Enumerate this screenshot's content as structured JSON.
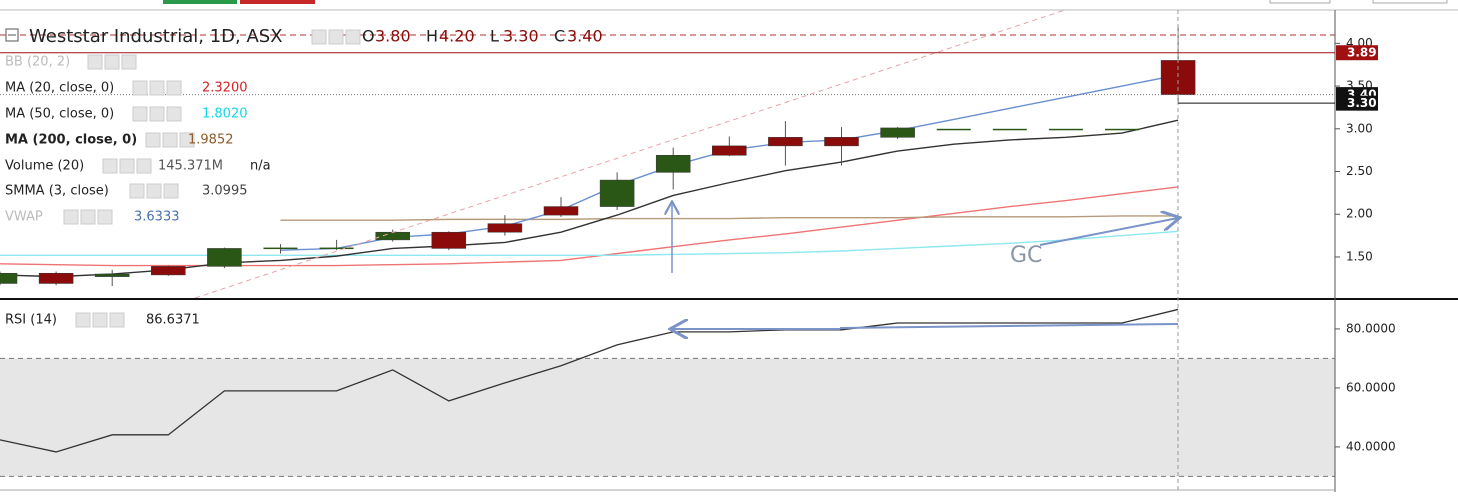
{
  "chart_data": [
    {
      "type": "candlestick",
      "title": "Weststar Industrial, 1D, ASX",
      "header": [
        {
          "key": "O",
          "value": "3.80"
        },
        {
          "key": "H",
          "value": "4.20"
        },
        {
          "key": "L",
          "value": "3.30"
        },
        {
          "key": "C",
          "value": "3.40"
        }
      ],
      "categories": [
        null,
        null,
        null,
        null,
        null,
        null,
        null,
        null,
        null,
        null,
        null,
        null,
        null,
        null,
        null,
        null,
        null,
        null,
        null,
        null,
        null,
        null
      ],
      "open": [
        1.19,
        1.31,
        1.27,
        1.39,
        1.39,
        1.6,
        1.6,
        1.7,
        1.79,
        1.89,
        2.09,
        2.09,
        2.49,
        2.8,
        2.9,
        2.9,
        2.9,
        3.0,
        3.0,
        3.0,
        3.0,
        3.8
      ],
      "high": [
        1.33,
        1.33,
        1.35,
        1.4,
        1.61,
        1.65,
        1.7,
        1.82,
        1.8,
        1.99,
        2.2,
        2.49,
        2.78,
        2.91,
        3.09,
        3.02,
        3.02,
        3.0,
        3.0,
        3.0,
        3.0,
        4.2
      ],
      "low": [
        1.17,
        1.17,
        1.16,
        1.28,
        1.37,
        1.54,
        1.58,
        1.68,
        1.58,
        1.75,
        1.97,
        2.05,
        2.29,
        2.68,
        2.57,
        2.57,
        2.88,
        3.0,
        3.0,
        3.0,
        3.0,
        3.3
      ],
      "close": [
        1.31,
        1.19,
        1.3,
        1.29,
        1.6,
        1.61,
        1.61,
        1.79,
        1.6,
        1.79,
        1.99,
        2.4,
        2.69,
        2.69,
        2.8,
        2.8,
        3.01,
        3.0,
        3.0,
        3.0,
        3.0,
        3.4
      ],
      "up_color": "#2b5716",
      "down_color": "#8b0a0a",
      "indicators": [
        {
          "name": "BB (20, 2)"
        },
        {
          "name": "Volume (20)",
          "value_label": "145.371M",
          "extra": "n/a",
          "color": "#555555"
        }
      ],
      "series": [
        {
          "name": "MA (20, close, 0)",
          "value_label": "2.3200",
          "color": "#f07373",
          "label_color": "#d42020",
          "values": [
            1.42,
            1.41,
            1.4,
            1.4,
            1.4,
            1.4,
            1.4,
            1.41,
            1.42,
            1.44,
            1.46,
            1.54,
            1.62,
            1.7,
            1.77,
            1.85,
            1.93,
            2.01,
            2.09,
            2.16,
            2.24,
            2.32
          ]
        },
        {
          "name": "MA (50, close, 0)",
          "value_label": "1.8020",
          "color": "#8ee8ee",
          "label_color": "#10d8e8",
          "values": [
            1.52,
            1.52,
            1.52,
            1.52,
            1.52,
            1.52,
            1.52,
            1.52,
            1.52,
            1.52,
            1.52,
            1.52,
            1.53,
            1.54,
            1.55,
            1.57,
            1.6,
            1.63,
            1.66,
            1.7,
            1.75,
            1.8
          ]
        },
        {
          "name": "MA (200, close, 0)",
          "value_label": "1.9852",
          "color": "#b49a78",
          "label_color": "#8b5a2b",
          "bold": true,
          "values": [
            null,
            null,
            null,
            null,
            null,
            1.93,
            1.93,
            1.93,
            1.94,
            1.94,
            1.94,
            1.95,
            1.95,
            1.95,
            1.96,
            1.96,
            1.96,
            1.97,
            1.97,
            1.97,
            1.98,
            1.98
          ]
        },
        {
          "name": "SMMA (3, close)",
          "value_label": "3.0995",
          "color": "#333333",
          "label_color": "#444444",
          "values": [
            1.29,
            1.27,
            1.3,
            1.35,
            1.43,
            1.46,
            1.51,
            1.6,
            1.63,
            1.67,
            1.79,
            1.99,
            2.22,
            2.37,
            2.51,
            2.61,
            2.74,
            2.82,
            2.87,
            2.9,
            2.95,
            3.1
          ]
        },
        {
          "name": "VWAP",
          "value_label": "3.6333",
          "color": "#6a8fd0",
          "label_color": "#4a6fb0",
          "values": [
            null,
            null,
            null,
            null,
            null,
            1.58,
            1.6,
            1.73,
            1.77,
            1.86,
            2.05,
            2.34,
            2.57,
            2.75,
            2.84,
            2.87,
            2.98,
            3.11,
            3.24,
            3.37,
            3.5,
            3.63
          ]
        }
      ],
      "ylim": [
        1.02,
        4.39
      ],
      "yticks": [
        {
          "value": 1.5,
          "label": "1.50"
        },
        {
          "value": 2,
          "label": "2.00"
        },
        {
          "value": 2.5,
          "label": "2.50"
        },
        {
          "value": 3,
          "label": "3.00"
        },
        {
          "value": 3.5,
          "label": "3.50"
        },
        {
          "value": 4,
          "label": "4.00"
        }
      ],
      "price_tags": [
        {
          "value": 3.89,
          "label": "3.89",
          "color": "#a01010"
        },
        {
          "value": 3.4,
          "label": "3.40",
          "color": "#111111"
        },
        {
          "value": 3.3,
          "label": "3.30",
          "color": "#111111"
        }
      ],
      "annotations": [
        "GC"
      ]
    },
    {
      "type": "line",
      "title": "RSI (14)",
      "value_label": "86.6371",
      "categories": [
        null,
        null,
        null,
        null,
        null,
        null,
        null,
        null,
        null,
        null,
        null,
        null,
        null,
        null,
        null,
        null,
        null,
        null,
        null,
        null,
        null,
        null
      ],
      "series": [
        {
          "name": "RSI",
          "color": "#333333",
          "values": [
            42.4,
            38.3,
            44.1,
            44.1,
            59.0,
            59.0,
            59.0,
            66.1,
            55.6,
            61.7,
            67.5,
            74.6,
            79.0,
            79.0,
            79.7,
            79.7,
            82.0,
            82.0,
            82.0,
            82.0,
            82.0,
            86.6
          ]
        }
      ],
      "band": [
        30,
        70
      ],
      "ylim": [
        25.4,
        89.8
      ],
      "yticks": [
        {
          "value": 40,
          "label": "40.0000"
        },
        {
          "value": 60,
          "label": "60.0000"
        },
        {
          "value": 80,
          "label": "80.0000"
        }
      ]
    }
  ]
}
